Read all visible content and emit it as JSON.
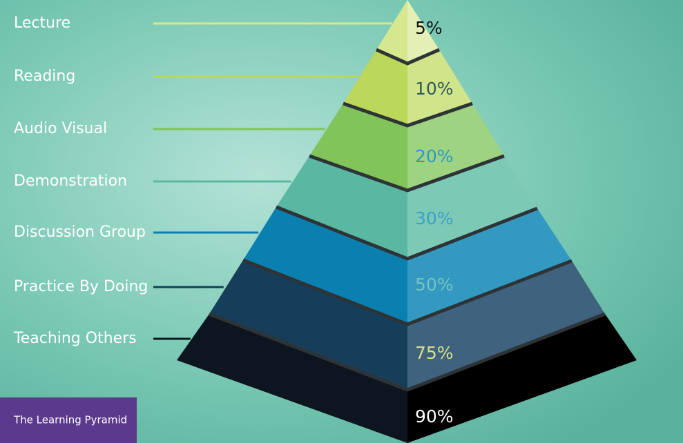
{
  "caption": "The Learning Pyramid",
  "layers": [
    {
      "label": "Lecture",
      "value": "5%"
    },
    {
      "label": "Reading",
      "value": "10%"
    },
    {
      "label": "Audio Visual",
      "value": "20%"
    },
    {
      "label": "Demonstration",
      "value": "30%"
    },
    {
      "label": "Discussion Group",
      "value": "50%"
    },
    {
      "label": "Practice By Doing",
      "value": "75%"
    },
    {
      "label": "Teaching Others",
      "value": "90%"
    }
  ]
}
